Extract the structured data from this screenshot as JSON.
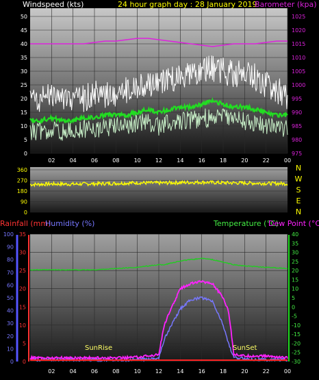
{
  "header": {
    "wind_label": "Windspeed (kts)",
    "title": "24 hour graph day : 28 January 2019",
    "baro_label": "Barometer (kpa)"
  },
  "bottom_header": {
    "rain_label": "Rainfall (mm)",
    "humidity_label": "Humidity (%)",
    "temp_label": "Temperature (°C)",
    "dew_label": "Dew Point (°C)"
  },
  "annotations": {
    "sunrise": "SunRise",
    "sunset": "SunSet"
  },
  "colors": {
    "wind_gust": "#ffffff",
    "wind_avg": "#c8f0c8",
    "wind_avg_line": "#22dd22",
    "barometer": "#dd22dd",
    "wind_dir": "#ffff00",
    "temperature": "#ff22ff",
    "dew_point": "#7777ff",
    "humidity": "#22cc22",
    "rain_label": "#ff3333",
    "humidity_label": "#7777ff",
    "temp_label": "#44ee44"
  },
  "chart_data": [
    {
      "type": "line",
      "name": "wind-barometer",
      "x_ticks": [
        "02",
        "04",
        "06",
        "08",
        "10",
        "12",
        "14",
        "16",
        "18",
        "20",
        "22",
        "00"
      ],
      "y_left_ticks": [
        "0",
        "5",
        "10",
        "15",
        "20",
        "25",
        "30",
        "35",
        "40",
        "45",
        "50"
      ],
      "y_left_lim": [
        0,
        50
      ],
      "y_right_ticks": [
        "975",
        "980",
        "985",
        "990",
        "995",
        "1000",
        "1005",
        "1010",
        "1015",
        "1020",
        "1025"
      ],
      "y_right_lim": [
        975,
        1025
      ],
      "hours": [
        0,
        1,
        2,
        3,
        4,
        5,
        6,
        7,
        8,
        9,
        10,
        11,
        12,
        13,
        14,
        15,
        16,
        17,
        18,
        19,
        20,
        21,
        22,
        23,
        24
      ],
      "gust": [
        18,
        19,
        20,
        19,
        18,
        19,
        21,
        20,
        21,
        22,
        23,
        24,
        24,
        26,
        27,
        28,
        29,
        30,
        29,
        28,
        28,
        27,
        24,
        22,
        20
      ],
      "average": [
        12,
        12,
        13,
        12,
        12,
        13,
        13,
        14,
        14,
        14,
        15,
        16,
        15,
        16,
        17,
        17,
        18,
        19,
        18,
        17,
        17,
        16,
        15,
        14,
        14
      ],
      "lull": [
        8,
        8,
        9,
        8,
        8,
        9,
        9,
        9,
        10,
        10,
        11,
        11,
        10,
        11,
        12,
        12,
        13,
        13,
        13,
        12,
        12,
        11,
        10,
        9,
        9
      ],
      "barometer": [
        1015,
        1015,
        1015,
        1015,
        1015,
        1015,
        1015.5,
        1016,
        1016,
        1016.5,
        1017,
        1017,
        1016.5,
        1016,
        1015.5,
        1015,
        1014.5,
        1014,
        1014.5,
        1015,
        1015,
        1015,
        1015.5,
        1016,
        1016
      ]
    },
    {
      "type": "line",
      "name": "wind-direction",
      "x_ticks": [
        "02",
        "04",
        "06",
        "08",
        "10",
        "12",
        "14",
        "16",
        "18",
        "20",
        "22",
        "00"
      ],
      "y_ticks": [
        "0",
        "90",
        "180",
        "270",
        "360"
      ],
      "y_lim": [
        0,
        360
      ],
      "compass": [
        "N",
        "W",
        "S",
        "E",
        "N"
      ],
      "hours": [
        0,
        2,
        4,
        6,
        8,
        10,
        12,
        14,
        16,
        18,
        20,
        22,
        24
      ],
      "direction": [
        235,
        240,
        238,
        242,
        245,
        250,
        248,
        252,
        255,
        250,
        248,
        245,
        242
      ]
    },
    {
      "type": "line",
      "name": "temp-humidity-rain",
      "x_ticks": [
        "02",
        "04",
        "06",
        "08",
        "10",
        "12",
        "14",
        "16",
        "18",
        "20",
        "22",
        "00"
      ],
      "y_humidity_ticks": [
        "0",
        "10",
        "20",
        "30",
        "40",
        "50",
        "60",
        "70",
        "80",
        "90",
        "100"
      ],
      "y_humidity_lim": [
        0,
        100
      ],
      "y_rain_ticks": [
        "0",
        "5",
        "10",
        "15",
        "20",
        "25",
        "30",
        "35"
      ],
      "y_rain_lim": [
        0,
        35
      ],
      "y_temp_ticks": [
        "-30",
        "-25",
        "-20",
        "-15",
        "-10",
        "-5",
        "0",
        "5",
        "10",
        "15",
        "20",
        "25",
        "30",
        "35",
        "40"
      ],
      "y_temp_lim": [
        -30,
        40
      ],
      "hours": [
        0,
        2,
        4,
        6,
        8,
        10,
        11,
        12,
        12.5,
        13,
        14,
        15,
        16,
        17,
        18,
        18.5,
        19,
        20,
        22,
        24
      ],
      "humidity": [
        72,
        72,
        72,
        72,
        73,
        74,
        75,
        76,
        76,
        77,
        79,
        80,
        81,
        80,
        78,
        77,
        76,
        75,
        74,
        73
      ],
      "temperature": [
        -28,
        -28,
        -28,
        -28,
        -28,
        -27.5,
        -27,
        -26,
        -10,
        -3,
        10,
        13,
        14,
        13,
        5,
        -2,
        -26,
        -27,
        -27,
        -28
      ],
      "dew_point": [
        -29,
        -29,
        -29,
        -29,
        -29,
        -29,
        -28.5,
        -28,
        -18,
        -12,
        -1,
        4,
        5,
        3,
        -10,
        -20,
        -28,
        -28.5,
        -29,
        -29
      ],
      "rainfall": [
        0,
        0,
        0,
        0,
        0,
        0,
        0,
        0,
        0,
        0,
        0,
        0,
        0,
        0,
        0,
        0,
        0,
        0,
        0,
        0
      ]
    }
  ]
}
